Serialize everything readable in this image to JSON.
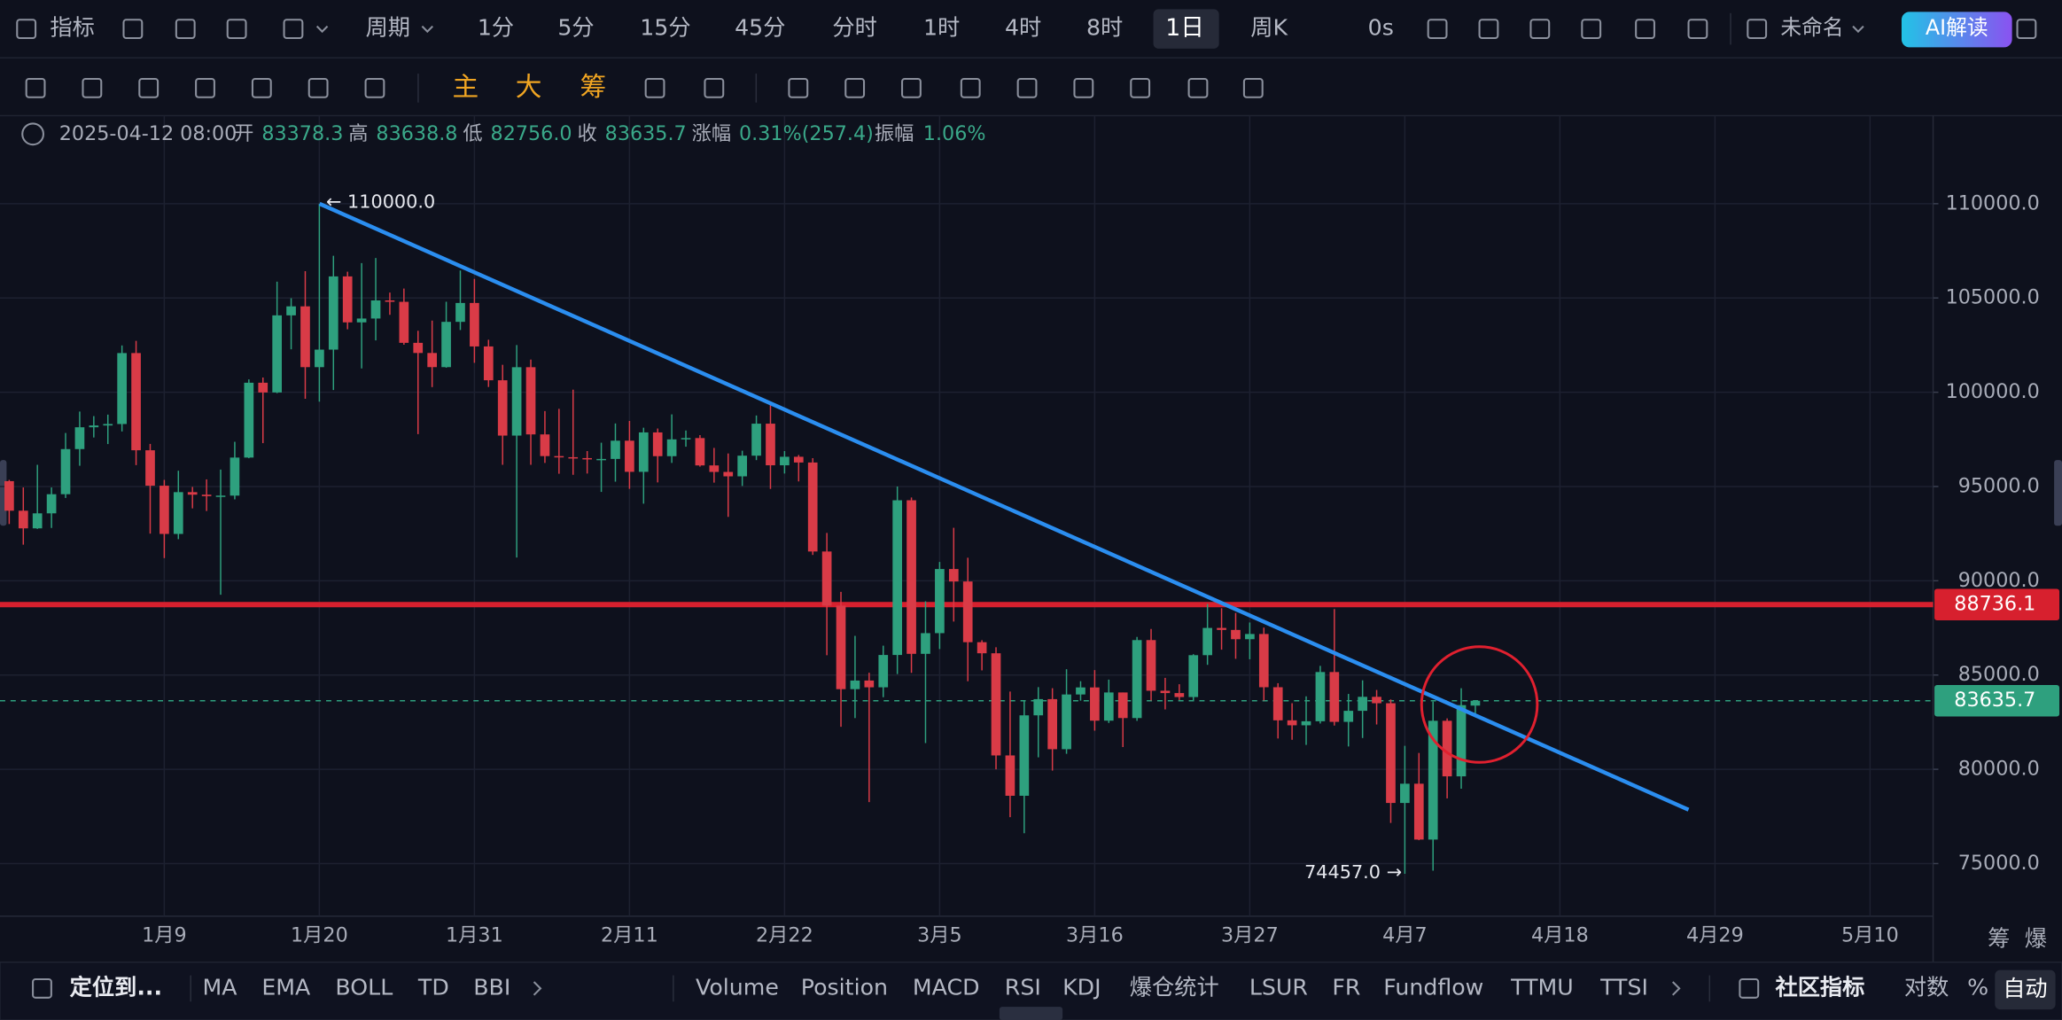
{
  "toolbar": {
    "indicators": "指标",
    "period": "周期",
    "intervals": [
      "1分",
      "5分",
      "15分",
      "45分",
      "分时",
      "1时",
      "4时",
      "8时",
      "1日",
      "周K"
    ],
    "countdown": "0s",
    "layout_name": "未命名",
    "ai": "AI解读"
  },
  "drawing_toolbar": {
    "buttons": [
      "主",
      "大",
      "筹"
    ]
  },
  "info_bar": {
    "time": "2025-04-12 08:00",
    "open_label": "开",
    "open": "83378.3",
    "high_label": "高",
    "high": "83638.8",
    "low_label": "低",
    "low": "82756.0",
    "close_label": "收",
    "close": "83635.7",
    "change_label": "涨幅",
    "change": "0.31%(257.4)",
    "amplitude_label": "振幅",
    "amplitude": "1.06%"
  },
  "chart_data": {
    "type": "candlestick",
    "categories": [
      null,
      null,
      null,
      null,
      null,
      null,
      null,
      null,
      null,
      null,
      null,
      "1月9",
      null,
      null,
      null,
      null,
      null,
      null,
      null,
      null,
      null,
      null,
      "1月20",
      null,
      null,
      null,
      null,
      null,
      null,
      null,
      null,
      null,
      null,
      "1月31",
      null,
      null,
      null,
      null,
      null,
      null,
      null,
      null,
      null,
      null,
      "2月11",
      null,
      null,
      null,
      null,
      null,
      null,
      null,
      null,
      null,
      null,
      "2月22",
      null,
      null,
      null,
      null,
      null,
      null,
      null,
      null,
      null,
      null,
      "3月5",
      null,
      null,
      null,
      null,
      null,
      null,
      null,
      null,
      null,
      null,
      "3月16",
      null,
      null,
      null,
      null,
      null,
      null,
      null,
      null,
      null,
      null,
      "3月27",
      null,
      null,
      null,
      null,
      null,
      null,
      null,
      null,
      null,
      null,
      "4月7",
      null,
      null,
      null,
      null,
      null,
      null,
      null,
      null,
      null,
      null,
      "4月18",
      null,
      null,
      null,
      null,
      null,
      null,
      null,
      null,
      null,
      null,
      "4月29",
      null,
      null,
      null,
      null,
      null,
      null,
      null,
      null,
      null,
      null,
      "5月10",
      null,
      null,
      null,
      null
    ],
    "open": [
      95284,
      93716,
      92780,
      93576,
      94591,
      96984,
      98142,
      98236,
      98314,
      102078,
      96922,
      95043,
      92484,
      94701,
      94566,
      94488,
      94516,
      96534,
      100504,
      99987,
      104078,
      104556,
      101331,
      102260,
      106144,
      103706,
      103910,
      104871,
      104796,
      102620,
      102082,
      101332,
      103733,
      104735,
      102429,
      100635,
      97700,
      101328,
      97763,
      96612,
      96554,
      96506,
      96444,
      96462,
      97430,
      95778,
      97869,
      96608,
      97500,
      97569,
      96118,
      95773,
      95539,
      96635,
      98333,
      96125,
      96577,
      96273,
      91552,
      88680,
      84250,
      84708,
      84349,
      86064,
      94270,
      86124,
      87222,
      90623,
      89961,
      86742,
      86154,
      80735,
      78596,
      82862,
      83722,
      81066,
      83969,
      84343,
      82579,
      84075,
      82718,
      86854,
      84167,
      84043,
      83832,
      86054,
      87498,
      87392,
      86900,
      87177,
      84353,
      82597,
      82334,
      82548,
      85159,
      82516,
      83102,
      83844,
      83504,
      78214,
      79235,
      76272,
      82573,
      79626,
      83378.3,
      null,
      null,
      null,
      null,
      null,
      null,
      null,
      null,
      null,
      null,
      null,
      null,
      null,
      null,
      null,
      null,
      null,
      null,
      null,
      null,
      null,
      null,
      null,
      null,
      null,
      null,
      null,
      null,
      null,
      null,
      null,
      null
    ],
    "high": [
      95350,
      94950,
      96150,
      94950,
      97839,
      98976,
      98734,
      98813,
      102482,
      102724,
      97259,
      95350,
      95836,
      94977,
      95378,
      95900,
      97371,
      100681,
      100781,
      105865,
      104988,
      106422,
      110000,
      107240,
      106394,
      106850,
      107120,
      105286,
      105500,
      103260,
      103800,
      104800,
      106457,
      106012,
      102783,
      101456,
      102500,
      101732,
      99000,
      99120,
      100137,
      96880,
      97323,
      98345,
      98478,
      98119,
      98076,
      98826,
      97970,
      97725,
      97046,
      96753,
      96899,
      98767,
      99497,
      96880,
      96671,
      96503,
      92540,
      89414,
      87078,
      85120,
      86558,
      95000,
      94416,
      88911,
      90998,
      92810,
      91224,
      86847,
      86471,
      84123,
      83617,
      84358,
      84301,
      85309,
      84672,
      85263,
      84756,
      84075,
      87021,
      87443,
      84850,
      84513,
      86106,
      88765,
      88542,
      88292,
      87786,
      87515,
      84567,
      83505,
      83870,
      85487,
      88500,
      83998,
      84720,
      84207,
      83704,
      81243,
      80867,
      83588,
      82700,
      84300,
      83638.8,
      null,
      null,
      null,
      null,
      null,
      null,
      null,
      null,
      null,
      null,
      null,
      null,
      null,
      null,
      null,
      null,
      null,
      null,
      null,
      null,
      null,
      null,
      null,
      null,
      null,
      null,
      null,
      null,
      null,
      null,
      null,
      null
    ],
    "low": [
      93009,
      91914,
      92750,
      92800,
      94392,
      96100,
      97600,
      97251,
      97920,
      96132,
      92500,
      91203,
      92206,
      93840,
      93700,
      89256,
      94317,
      96500,
      97300,
      99950,
      102277,
      99651,
      99500,
      100119,
      103339,
      101262,
      102750,
      104106,
      102520,
      97777,
      100272,
      101300,
      103300,
      101560,
      100279,
      96150,
      91231,
      96150,
      96250,
      95676,
      95620,
      95688,
      94713,
      95256,
      94876,
      94088,
      95217,
      96252,
      97111,
      96055,
      95205,
      93388,
      95029,
      96400,
      94871,
      95688,
      95270,
      91371,
      86050,
      82256,
      82716,
      78258,
      83824,
      85050,
      85117,
      81390,
      86379,
      87836,
      84667,
      85247,
      80000,
      77459,
      76606,
      80635,
      79931,
      80821,
      83639,
      82049,
      82457,
      81179,
      82569,
      83647,
      83175,
      83674,
      83600,
      85541,
      86346,
      85861,
      85837,
      83646,
      81634,
      81565,
      81293,
      82429,
      82320,
      81211,
      81659,
      82377,
      77153,
      74457,
      76239,
      74620,
      78456,
      78971,
      82756,
      null,
      null,
      null,
      null,
      null,
      null,
      null,
      null,
      null,
      null,
      null,
      null,
      null,
      null,
      null,
      null,
      null,
      null,
      null,
      null,
      null,
      null,
      null,
      null,
      null,
      null,
      null,
      null,
      null,
      null,
      null,
      null
    ],
    "close": [
      93716,
      92780,
      93576,
      94591,
      96984,
      98142,
      98236,
      98314,
      102078,
      96922,
      95043,
      92484,
      94701,
      94566,
      94488,
      94516,
      96534,
      100504,
      99987,
      104078,
      104556,
      101331,
      102260,
      106144,
      103706,
      103910,
      104871,
      104796,
      102620,
      102082,
      101332,
      103733,
      104735,
      102429,
      100635,
      97700,
      101328,
      97763,
      96612,
      96554,
      96506,
      96444,
      96462,
      97430,
      95778,
      97869,
      96608,
      97500,
      97569,
      96118,
      95773,
      95539,
      96635,
      98333,
      96125,
      96577,
      96273,
      91552,
      88680,
      84250,
      84708,
      84349,
      86064,
      94270,
      86124,
      87222,
      90623,
      89961,
      86742,
      86154,
      80735,
      78596,
      82862,
      83722,
      81066,
      83969,
      84343,
      82579,
      84075,
      82718,
      86854,
      84167,
      84043,
      83832,
      86054,
      87498,
      87392,
      86900,
      87177,
      84353,
      82597,
      82334,
      82548,
      85159,
      82516,
      83102,
      83844,
      83504,
      78214,
      79235,
      76272,
      82573,
      79626,
      83404,
      83635.7,
      null,
      null,
      null,
      null,
      null,
      null,
      null,
      null,
      null,
      null,
      null,
      null,
      null,
      null,
      null,
      null,
      null,
      null,
      null,
      null,
      null,
      null,
      null,
      null,
      null,
      null,
      null,
      null,
      null,
      null,
      null,
      null
    ],
    "up_color": "#2ea07e",
    "down_color": "#d93b47",
    "ylim": [
      72210,
      114530
    ],
    "yticks": [
      {
        "value": 75000,
        "label": "75000.0"
      },
      {
        "value": 80000,
        "label": "80000.0"
      },
      {
        "value": 85000,
        "label": "85000.0"
      },
      {
        "value": 90000,
        "label": "90000.0"
      },
      {
        "value": 95000,
        "label": "95000.0"
      },
      {
        "value": 100000,
        "label": "100000.0"
      },
      {
        "value": 105000,
        "label": "105000.0"
      },
      {
        "value": 110000,
        "label": "110000.0"
      }
    ],
    "grid": true,
    "price_lines": [
      {
        "value": 88736.1,
        "label": "88736.1",
        "color": "#d7202e",
        "style": "solid"
      },
      {
        "value": 83635.7,
        "label": "83635.7",
        "color": "#2ea07e",
        "style": "dashed"
      }
    ],
    "annotations": [
      "← 110000.0",
      "74457.0 →"
    ],
    "axis_buttons": [
      "筹",
      "爆"
    ]
  },
  "bottom_bar": {
    "locate": "定位到...",
    "main_indicators": [
      "MA",
      "EMA",
      "BOLL",
      "TD",
      "BBI"
    ],
    "sub_indicators": [
      "Volume",
      "Position",
      "MACD",
      "RSI",
      "KDJ",
      "爆仓统计",
      "LSUR",
      "FR",
      "Fundflow",
      "TTMU",
      "TTSI"
    ],
    "community": "社区指标",
    "log": "对数",
    "percent": "%",
    "auto": "自动"
  }
}
